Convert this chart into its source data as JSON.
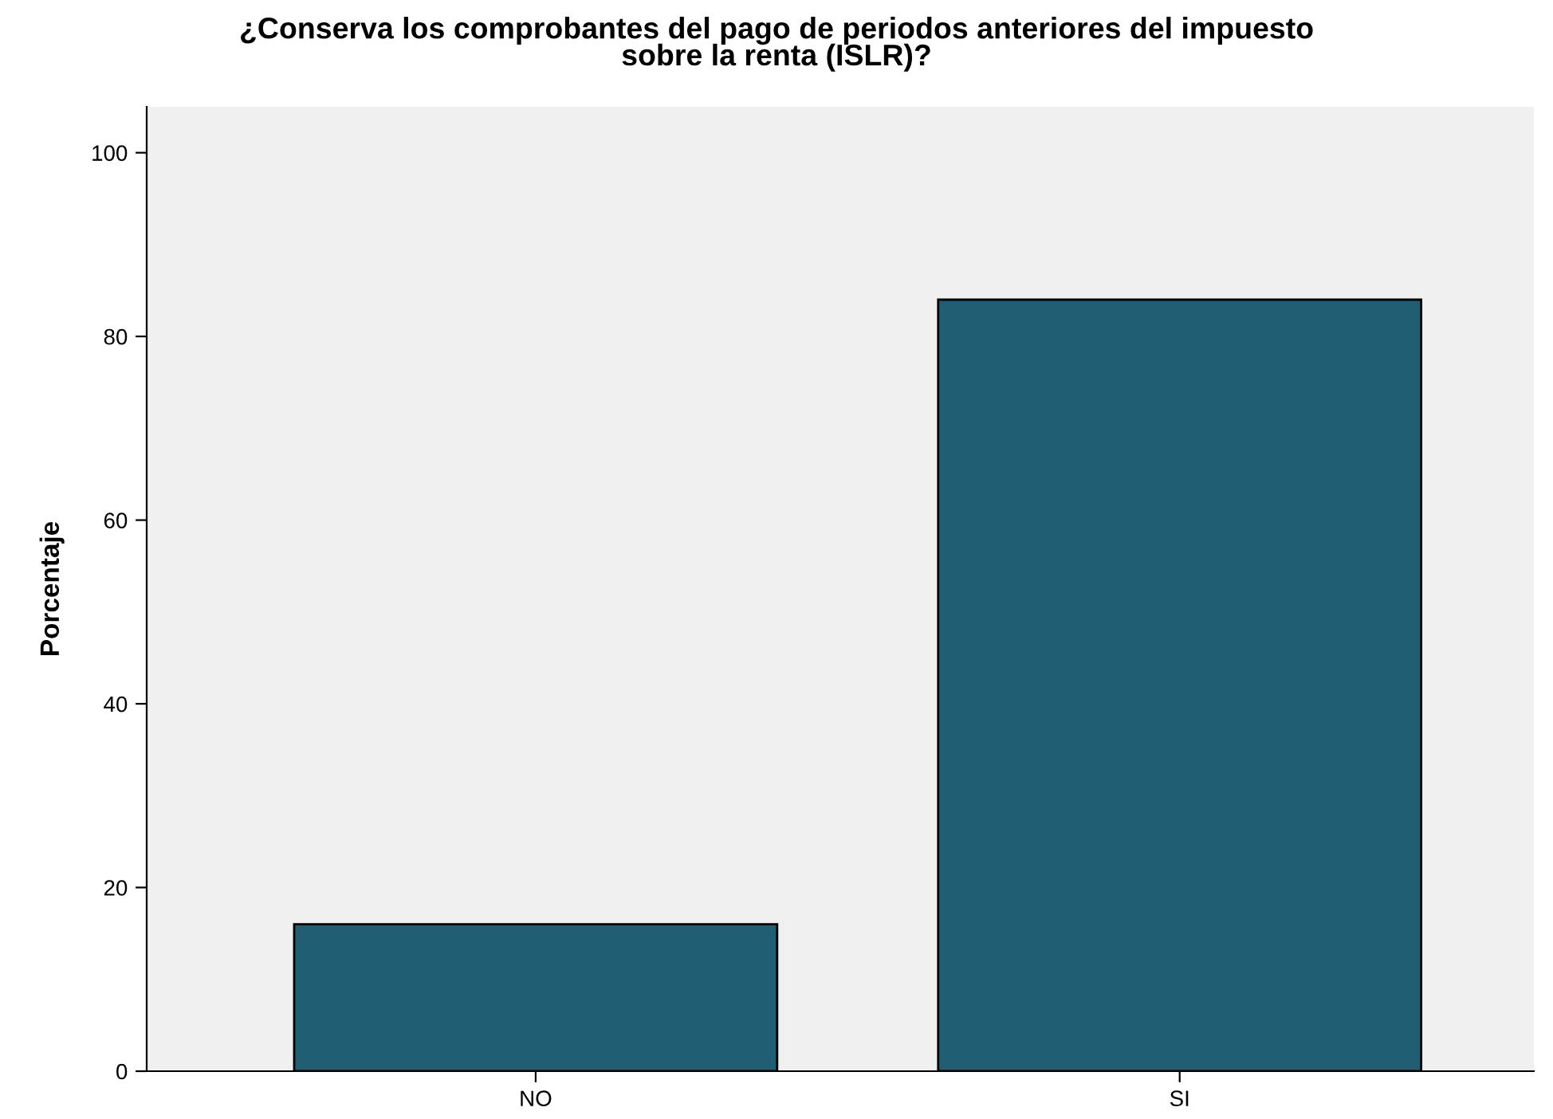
{
  "chart_data": {
    "type": "bar",
    "title": "¿Conserva los comprobantes del pago de periodos anteriores del impuesto\nsobre la renta (ISLR)?",
    "ylabel": "Porcentaje",
    "categories": [
      "NO",
      "SI"
    ],
    "values": [
      16,
      84
    ],
    "color": "#1f5e73",
    "ylim": [
      0,
      105
    ],
    "yticks": [
      0,
      20,
      40,
      60,
      80,
      100
    ],
    "grid": false
  }
}
